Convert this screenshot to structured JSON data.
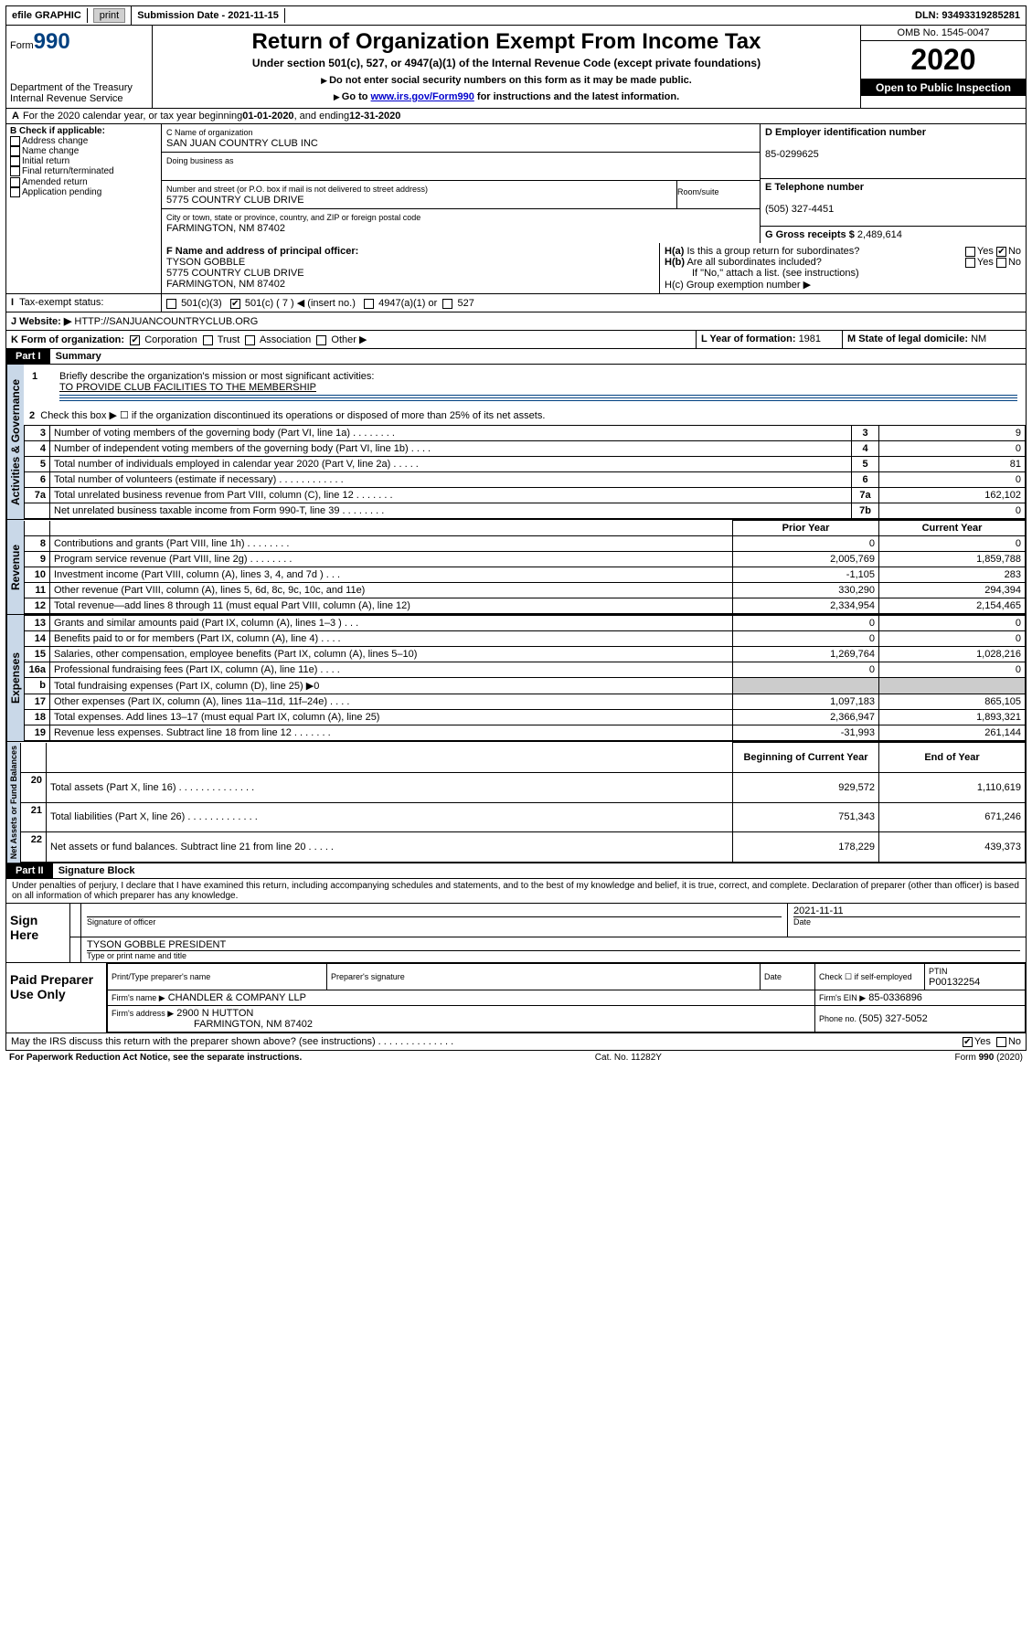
{
  "topbar": {
    "efile": "efile GRAPHIC",
    "print_btn": "print",
    "submission_date_label": "Submission Date - ",
    "submission_date": "2021-11-15",
    "dln_label": "DLN: ",
    "dln": "93493319285281"
  },
  "header": {
    "form_label": "Form",
    "form_number": "990",
    "dept": "Department of the Treasury\nInternal Revenue Service",
    "title": "Return of Organization Exempt From Income Tax",
    "subtitle": "Under section 501(c), 527, or 4947(a)(1) of the Internal Revenue Code (except private foundations)",
    "note1": "Do not enter social security numbers on this form as it may be made public.",
    "note2_prefix": "Go to ",
    "note2_link": "www.irs.gov/Form990",
    "note2_suffix": " for instructions and the latest information.",
    "omb": "OMB No. 1545-0047",
    "year": "2020",
    "open": "Open to Public Inspection"
  },
  "line_a": {
    "text": "For the 2020 calendar year, or tax year beginning ",
    "begin": "01-01-2020",
    "mid": " , and ending ",
    "end": "12-31-2020"
  },
  "section_b": {
    "label": "B Check if applicable:",
    "opts": [
      "Address change",
      "Name change",
      "Initial return",
      "Final return/terminated",
      "Amended return",
      "Application pending"
    ]
  },
  "section_c": {
    "name_label": "C Name of organization",
    "name": "SAN JUAN COUNTRY CLUB INC",
    "dba_label": "Doing business as",
    "dba": "",
    "street_label": "Number and street (or P.O. box if mail is not delivered to street address)",
    "room_label": "Room/suite",
    "street": "5775 COUNTRY CLUB DRIVE",
    "city_label": "City or town, state or province, country, and ZIP or foreign postal code",
    "city": "FARMINGTON, NM  87402"
  },
  "section_d": {
    "label": "D Employer identification number",
    "value": "85-0299625"
  },
  "section_e": {
    "label": "E Telephone number",
    "value": "(505) 327-4451"
  },
  "section_g": {
    "label": "G Gross receipts $ ",
    "value": "2,489,614"
  },
  "section_f": {
    "label": "F Name and address of principal officer:",
    "name": "TYSON GOBBLE",
    "addr1": "5775 COUNTRY CLUB DRIVE",
    "addr2": "FARMINGTON, NM  87402"
  },
  "section_h": {
    "ha": "H(a)  Is this a group return for subordinates?",
    "hb": "H(b)  Are all subordinates included?",
    "hb_note": "If \"No,\" attach a list. (see instructions)",
    "hc": "H(c)  Group exemption number ▶",
    "yes": "Yes",
    "no": "No"
  },
  "tax_exempt": {
    "label": "Tax-exempt status:",
    "c7": "501(c) ( 7 ) ◀ (insert no.)",
    "c3": "501(c)(3)",
    "a1": "4947(a)(1) or",
    "s527": "527"
  },
  "website": {
    "label": "J   Website: ▶",
    "value": "HTTP://SANJUANCOUNTRYCLUB.ORG"
  },
  "line_k": {
    "label": "K Form of organization:",
    "opts": [
      "Corporation",
      "Trust",
      "Association",
      "Other ▶"
    ],
    "l_label": "L Year of formation: ",
    "l_val": "1981",
    "m_label": "M State of legal domicile: ",
    "m_val": "NM"
  },
  "part1": {
    "label": "Part I",
    "title": "Summary",
    "q1_label": "1",
    "q1": "Briefly describe the organization's mission or most significant activities:",
    "q1_ans": "TO PROVIDE CLUB FACILITIES TO THE MEMBERSHIP",
    "q2_label": "2",
    "q2": "Check this box ▶ ☐  if the organization discontinued its operations or disposed of more than 25% of its net assets.",
    "side_act_gov": "Activities & Governance",
    "side_rev": "Revenue",
    "side_exp": "Expenses",
    "side_net": "Net Assets or Fund Balances",
    "col_prior": "Prior Year",
    "col_curr": "Current Year",
    "col_boy": "Beginning of Current Year",
    "col_eoy": "End of Year",
    "rows_gov": [
      {
        "n": "3",
        "t": "Number of voting members of the governing body (Part VI, line 1a)    .    .    .    .    .    .    .    .",
        "ln": "3",
        "v": "9"
      },
      {
        "n": "4",
        "t": "Number of independent voting members of the governing body (Part VI, line 1b)    .    .    .    .",
        "ln": "4",
        "v": "0"
      },
      {
        "n": "5",
        "t": "Total number of individuals employed in calendar year 2020 (Part V, line 2a)    .    .    .    .    .",
        "ln": "5",
        "v": "81"
      },
      {
        "n": "6",
        "t": "Total number of volunteers (estimate if necessary)    .    .    .    .    .    .    .    .    .    .    .    .",
        "ln": "6",
        "v": "0"
      },
      {
        "n": "7a",
        "t": "Total unrelated business revenue from Part VIII, column (C), line 12    .    .    .    .    .    .    .",
        "ln": "7a",
        "v": "162,102"
      },
      {
        "n": "",
        "t": "Net unrelated business taxable income from Form 990-T, line 39    .    .    .    .    .    .    .    .",
        "ln": "7b",
        "v": "0"
      }
    ],
    "rows_rev": [
      {
        "n": "8",
        "t": "Contributions and grants (Part VIII, line 1h)    .    .    .    .    .    .    .    .",
        "p": "0",
        "c": "0"
      },
      {
        "n": "9",
        "t": "Program service revenue (Part VIII, line 2g)    .    .    .    .    .    .    .    .",
        "p": "2,005,769",
        "c": "1,859,788"
      },
      {
        "n": "10",
        "t": "Investment income (Part VIII, column (A), lines 3, 4, and 7d )    .    .    .",
        "p": "-1,105",
        "c": "283"
      },
      {
        "n": "11",
        "t": "Other revenue (Part VIII, column (A), lines 5, 6d, 8c, 9c, 10c, and 11e)",
        "p": "330,290",
        "c": "294,394"
      },
      {
        "n": "12",
        "t": "Total revenue—add lines 8 through 11 (must equal Part VIII, column (A), line 12)",
        "p": "2,334,954",
        "c": "2,154,465"
      }
    ],
    "rows_exp": [
      {
        "n": "13",
        "t": "Grants and similar amounts paid (Part IX, column (A), lines 1–3 )    .    .    .",
        "p": "0",
        "c": "0"
      },
      {
        "n": "14",
        "t": "Benefits paid to or for members (Part IX, column (A), line 4)    .    .    .    .",
        "p": "0",
        "c": "0"
      },
      {
        "n": "15",
        "t": "Salaries, other compensation, employee benefits (Part IX, column (A), lines 5–10)",
        "p": "1,269,764",
        "c": "1,028,216"
      },
      {
        "n": "16a",
        "t": "Professional fundraising fees (Part IX, column (A), line 11e)    .    .    .    .",
        "p": "0",
        "c": "0"
      },
      {
        "n": "b",
        "t": "Total fundraising expenses (Part IX, column (D), line 25) ▶0",
        "p": "",
        "c": ""
      },
      {
        "n": "17",
        "t": "Other expenses (Part IX, column (A), lines 11a–11d, 11f–24e)    .    .    .    .",
        "p": "1,097,183",
        "c": "865,105"
      },
      {
        "n": "18",
        "t": "Total expenses. Add lines 13–17 (must equal Part IX, column (A), line 25)",
        "p": "2,366,947",
        "c": "1,893,321"
      },
      {
        "n": "19",
        "t": "Revenue less expenses. Subtract line 18 from line 12    .    .    .    .    .    .    .",
        "p": "-31,993",
        "c": "261,144"
      }
    ],
    "rows_net": [
      {
        "n": "20",
        "t": "Total assets (Part X, line 16)    .    .    .    .    .    .    .    .    .    .    .    .    .    .",
        "p": "929,572",
        "c": "1,110,619"
      },
      {
        "n": "21",
        "t": "Total liabilities (Part X, line 26)    .    .    .    .    .    .    .    .    .    .    .    .    .",
        "p": "751,343",
        "c": "671,246"
      },
      {
        "n": "22",
        "t": "Net assets or fund balances. Subtract line 21 from line 20    .    .    .    .    .",
        "p": "178,229",
        "c": "439,373"
      }
    ]
  },
  "part2": {
    "label": "Part II",
    "title": "Signature Block",
    "perjury": "Under penalties of perjury, I declare that I have examined this return, including accompanying schedules and statements, and to the best of my knowledge and belief, it is true, correct, and complete. Declaration of preparer (other than officer) is based on all information of which preparer has any knowledge.",
    "sign_here": "Sign Here",
    "sig_officer": "Signature of officer",
    "sig_date_label": "Date",
    "sig_date": "2021-11-11",
    "sig_name": "TYSON GOBBLE  PRESIDENT",
    "sig_name_label": "Type or print name and title",
    "paid": "Paid Preparer Use Only",
    "prep_name_label": "Print/Type preparer's name",
    "prep_sig_label": "Preparer's signature",
    "date_label": "Date",
    "check_label": "Check ☐ if self-employed",
    "ptin_label": "PTIN",
    "ptin": "P00132254",
    "firm_name_label": "Firm's name   ▶",
    "firm_name": "CHANDLER & COMPANY LLP",
    "firm_ein_label": "Firm's EIN ▶",
    "firm_ein": "85-0336896",
    "firm_addr_label": "Firm's address ▶",
    "firm_addr1": "2900 N HUTTON",
    "firm_addr2": "FARMINGTON, NM  87402",
    "phone_label": "Phone no. ",
    "phone": "(505) 327-5052",
    "discuss": "May the IRS discuss this return with the preparer shown above? (see instructions)    .    .    .    .    .    .    .    .    .    .    .    .    .    ."
  },
  "footer": {
    "left": "For Paperwork Reduction Act Notice, see the separate instructions.",
    "mid": "Cat. No. 11282Y",
    "right": "Form 990 (2020)"
  }
}
